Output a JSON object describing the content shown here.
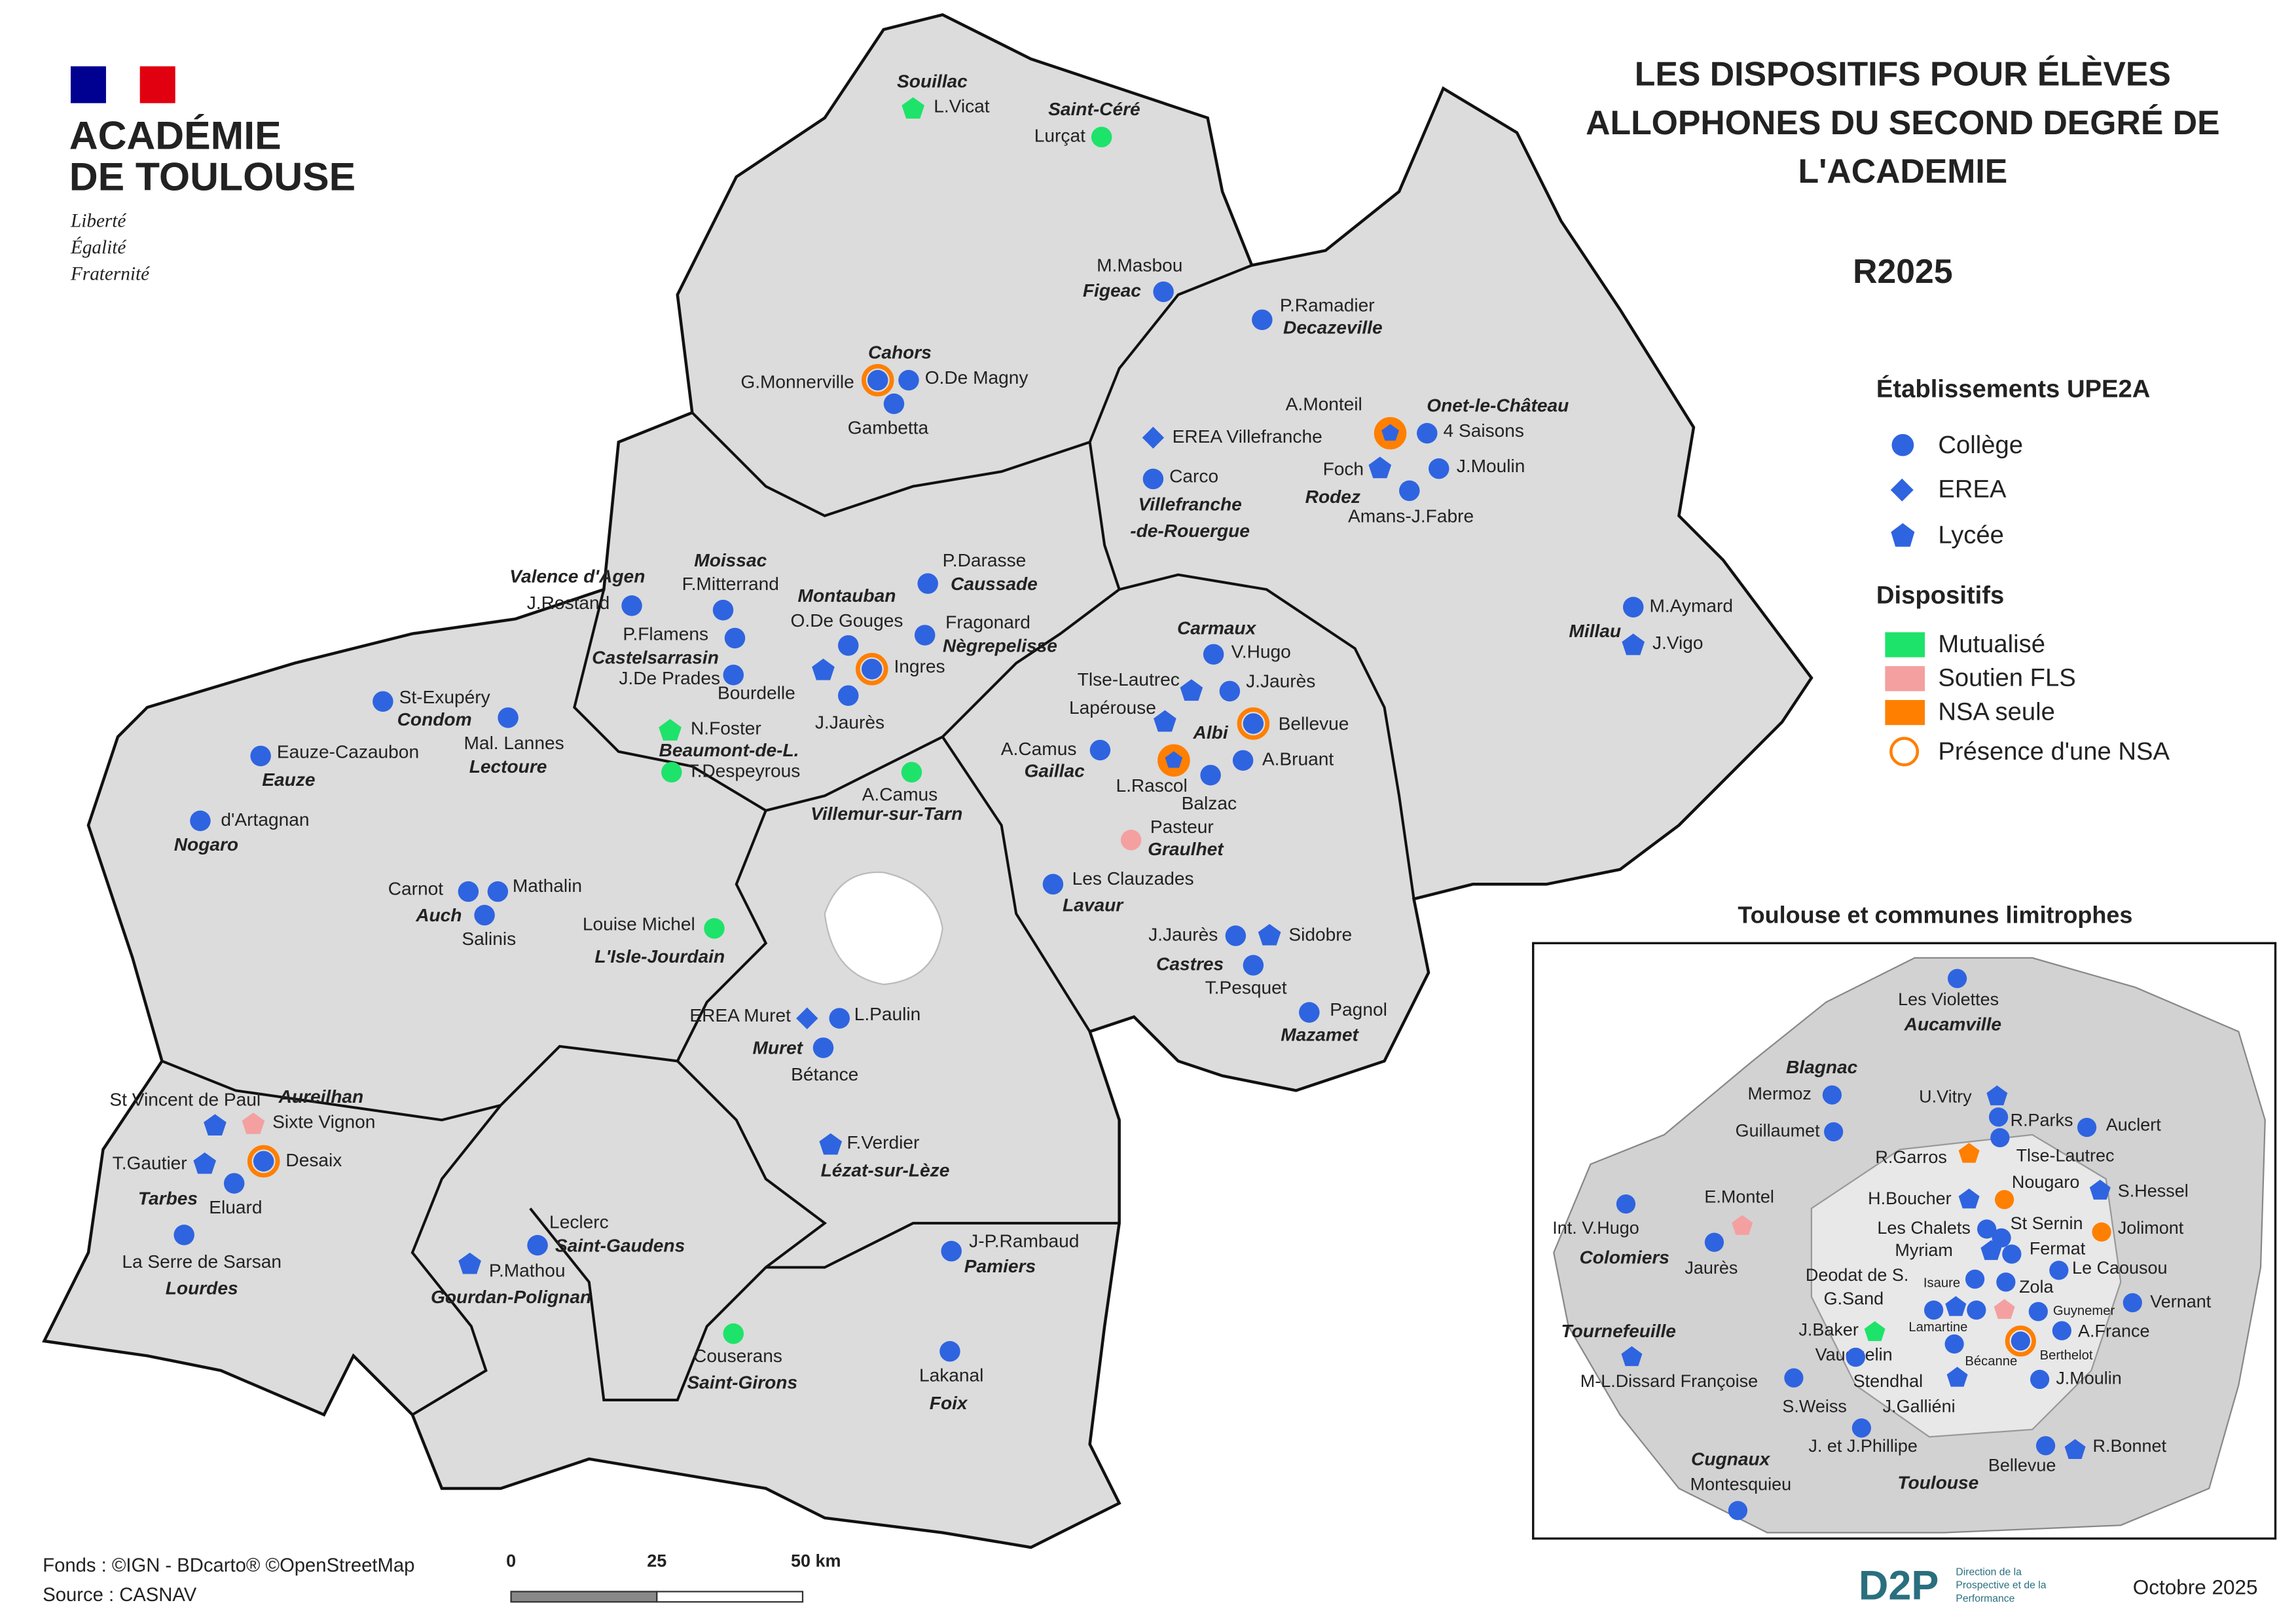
{
  "logo": {
    "line1": "ACADÉMIE",
    "line2": "DE TOULOUSE",
    "motto": [
      "Liberté",
      "Égalité",
      "Fraternité"
    ]
  },
  "title": [
    "LES DISPOSITIFS POUR ÉLÈVES",
    "ALLOPHONES DU SECOND DEGRÉ DE",
    "L'ACADEMIE"
  ],
  "subtitle": "R2025",
  "legend": {
    "establishments_title": "Établissements UPE2A",
    "establishments": [
      "Collège",
      "EREA",
      "Lycée"
    ],
    "devices_title": "Dispositifs",
    "devices": [
      "Mutualisé",
      "Soutien FLS",
      "NSA seule",
      "Présence d'une NSA"
    ]
  },
  "map": {
    "schools": [
      "L.Vicat",
      "Lurçat",
      "M.Masbou",
      "G.Monnerville",
      "O.De Magny",
      "Gambetta",
      "P.Ramadier",
      "A.Monteil",
      "4 Saisons",
      "EREA Villefranche",
      "Carco",
      "Foch",
      "J.Moulin",
      "Amans-J.Fabre",
      "M.Aymard",
      "J.Vigo",
      "J.Rostand",
      "F.Mitterrand",
      "P.Darasse",
      "P.Flamens",
      "O.De Gouges",
      "Fragonard",
      "J.De Prades",
      "Ingres",
      "Bourdelle",
      "J.Jaurès",
      "St-Exupéry",
      "Mal. Lannes",
      "Eauze-Cazaubon",
      "d'Artagnan",
      "N.Foster",
      "T.Despeyrous",
      "A.Camus",
      "V.Hugo",
      "Tlse-Lautrec",
      "J.Jaurès",
      "Lapérouse",
      "Bellevue",
      "A.Camus",
      "L.Rascol",
      "A.Bruant",
      "Balzac",
      "Pasteur",
      "Les Clauzades",
      "Carnot",
      "Mathalin",
      "Salinis",
      "Louise Michel",
      "J.Jaurès",
      "Sidobre",
      "T.Pesquet",
      "Pagnol",
      "EREA Muret",
      "L.Paulin",
      "Bétance",
      "F.Verdier",
      "St Vincent de Paul",
      "Sixte Vignon",
      "T.Gautier",
      "Desaix",
      "Eluard",
      "La Serre de Sarsan",
      "Leclerc",
      "P.Mathou",
      "J-P.Rambaud",
      "Couserans",
      "Lakanal"
    ],
    "towns": [
      "Souillac",
      "Saint-Céré",
      "Figeac",
      "Cahors",
      "Decazeville",
      "Onet-le-Château",
      "Rodez",
      "Villefranche",
      "-de-Rouergue",
      "Millau",
      "Valence d'Agen",
      "Moissac",
      "Montauban",
      "Caussade",
      "Castelsarrasin",
      "Nègrepelisse",
      "Condom",
      "Lectoure",
      "Beaumont-de-L.",
      "Eauze",
      "Villemur-sur-Tarn",
      "Gaillac",
      "Albi",
      "Carmaux",
      "Graulhet",
      "Lavaur",
      "Nogaro",
      "Auch",
      "L'Isle-Jourdain",
      "Castres",
      "Mazamet",
      "Muret",
      "Lézat-sur-Lèze",
      "Aureilhan",
      "Tarbes",
      "Lourdes",
      "Saint-Gaudens",
      "Gourdan-Polignan",
      "Pamiers",
      "Saint-Girons",
      "Foix"
    ]
  },
  "inset": {
    "title": "Toulouse et communes limitrophes",
    "schools": [
      "Les Violettes",
      "Mermoz",
      "U.Vitry",
      "R.Parks",
      "Auclert",
      "Guillaumet",
      "R.Garros",
      "Tlse-Lautrec",
      "Nougaro",
      "S.Hessel",
      "E.Montel",
      "H.Boucher",
      "Int. V.Hugo",
      "Les Chalets",
      "St Sernin",
      "Jolimont",
      "Myriam",
      "Fermat",
      "Jaurès",
      "Le Caousou",
      "Deodat de S.",
      "Isaure",
      "Zola",
      "Vernant",
      "G.Sand",
      "Guynemer",
      "J.Baker",
      "Lamartine",
      "A.France",
      "Vauquelin",
      "Bécanne",
      "Berthelot",
      "M-L.Dissard Françoise",
      "Stendhal",
      "J.Moulin",
      "S.Weiss",
      "J.Galliéni",
      "J. et J.Phillipe",
      "Bellevue",
      "R.Bonnet",
      "Montesquieu"
    ],
    "towns": [
      "Aucamville",
      "Blagnac",
      "Colomiers",
      "Tournefeuille",
      "Cugnaux",
      "Toulouse"
    ]
  },
  "footer": {
    "sources": [
      "Fonds : ©IGN - BDcarto® ©OpenStreetMap",
      "Source : CASNAV"
    ],
    "scale": [
      "0",
      "25",
      "50 km"
    ],
    "publisher": "D2P",
    "publisher_lines": [
      "Direction de la",
      "Prospective et de la",
      "Performance"
    ],
    "date": "Octobre 2025"
  }
}
